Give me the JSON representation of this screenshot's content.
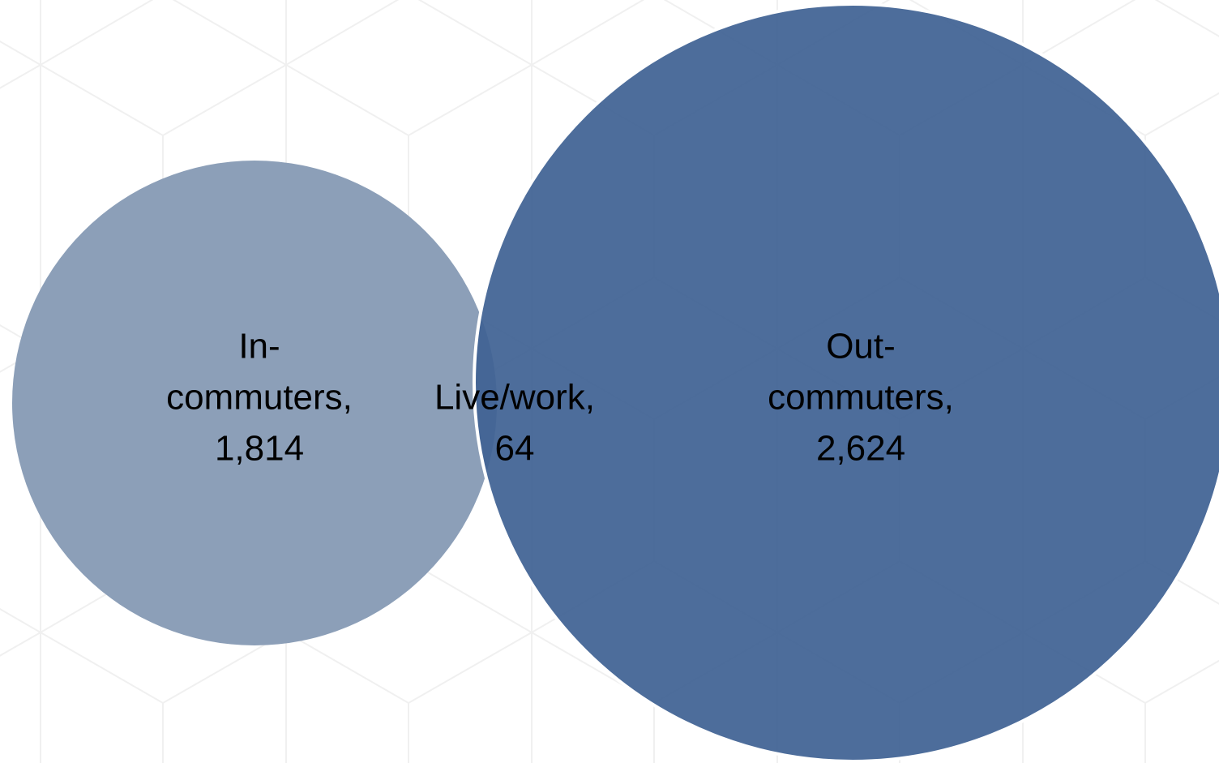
{
  "nodes": [
    {
      "lines": [
        "In-",
        "commuters,",
        "1,814"
      ]
    },
    {
      "lines": [
        "Live/work,",
        "64"
      ]
    },
    {
      "lines": [
        "Out-",
        "commuters,",
        "2,624"
      ]
    }
  ]
}
